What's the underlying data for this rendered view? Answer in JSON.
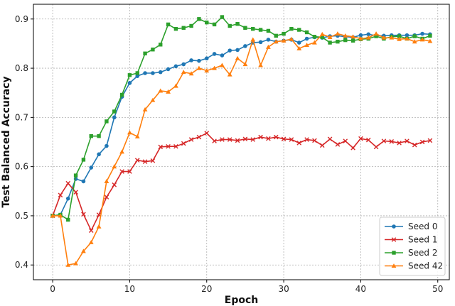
{
  "chart_data": {
    "type": "line",
    "title": "",
    "xlabel": "Epoch",
    "ylabel": "Test Balanced Accuracy",
    "xlim": [
      -2.5,
      51.5
    ],
    "ylim": [
      0.37,
      0.93
    ],
    "xticks": [
      0,
      10,
      20,
      30,
      40,
      50
    ],
    "yticks": [
      0.4,
      0.5,
      0.6,
      0.7,
      0.8,
      0.9
    ],
    "grid": true,
    "legend_position": "bottom-right",
    "x": [
      0,
      1,
      2,
      3,
      4,
      5,
      6,
      7,
      8,
      9,
      10,
      11,
      12,
      13,
      14,
      15,
      16,
      17,
      18,
      19,
      20,
      21,
      22,
      23,
      24,
      25,
      26,
      27,
      28,
      29,
      30,
      31,
      32,
      33,
      34,
      35,
      36,
      37,
      38,
      39,
      40,
      41,
      42,
      43,
      44,
      45,
      46,
      47,
      48,
      49
    ],
    "series": [
      {
        "name": "Seed 0",
        "color": "#1f77b4",
        "marker": "circle",
        "values": [
          0.5,
          0.502,
          0.535,
          0.575,
          0.57,
          0.598,
          0.625,
          0.642,
          0.7,
          0.742,
          0.77,
          0.784,
          0.79,
          0.79,
          0.792,
          0.798,
          0.804,
          0.808,
          0.816,
          0.815,
          0.82,
          0.829,
          0.826,
          0.836,
          0.837,
          0.845,
          0.852,
          0.853,
          0.858,
          0.854,
          0.856,
          0.858,
          0.852,
          0.86,
          0.863,
          0.862,
          0.865,
          0.866,
          0.864,
          0.863,
          0.867,
          0.869,
          0.866,
          0.866,
          0.867,
          0.867,
          0.867,
          0.867,
          0.87,
          0.869
        ]
      },
      {
        "name": "Seed 1",
        "color": "#d62728",
        "marker": "x",
        "values": [
          0.5,
          0.542,
          0.566,
          0.548,
          0.503,
          0.47,
          0.502,
          0.538,
          0.563,
          0.59,
          0.59,
          0.613,
          0.61,
          0.612,
          0.64,
          0.641,
          0.641,
          0.647,
          0.655,
          0.66,
          0.668,
          0.652,
          0.655,
          0.655,
          0.653,
          0.656,
          0.655,
          0.66,
          0.657,
          0.66,
          0.656,
          0.655,
          0.648,
          0.655,
          0.653,
          0.643,
          0.656,
          0.645,
          0.652,
          0.638,
          0.657,
          0.654,
          0.64,
          0.652,
          0.651,
          0.648,
          0.652,
          0.644,
          0.65,
          0.653
        ]
      },
      {
        "name": "Seed 2",
        "color": "#2ca02c",
        "marker": "square",
        "values": [
          0.5,
          0.502,
          0.492,
          0.582,
          0.614,
          0.662,
          0.662,
          0.692,
          0.712,
          0.746,
          0.786,
          0.79,
          0.83,
          0.838,
          0.848,
          0.889,
          0.88,
          0.882,
          0.886,
          0.9,
          0.893,
          0.889,
          0.904,
          0.886,
          0.89,
          0.882,
          0.88,
          0.878,
          0.876,
          0.866,
          0.87,
          0.88,
          0.878,
          0.873,
          0.864,
          0.863,
          0.852,
          0.854,
          0.857,
          0.856,
          0.859,
          0.86,
          0.865,
          0.86,
          0.864,
          0.865,
          0.86,
          0.865,
          0.86,
          0.866
        ]
      },
      {
        "name": "Seed 42",
        "color": "#ff7f0e",
        "marker": "triangle",
        "values": [
          0.5,
          0.5,
          0.4,
          0.403,
          0.428,
          0.446,
          0.478,
          0.57,
          0.6,
          0.63,
          0.669,
          0.661,
          0.716,
          0.735,
          0.754,
          0.752,
          0.764,
          0.792,
          0.789,
          0.8,
          0.795,
          0.8,
          0.806,
          0.787,
          0.82,
          0.808,
          0.858,
          0.806,
          0.843,
          0.854,
          0.856,
          0.859,
          0.84,
          0.847,
          0.852,
          0.869,
          0.863,
          0.87,
          0.866,
          0.864,
          0.86,
          0.862,
          0.87,
          0.862,
          0.862,
          0.859,
          0.86,
          0.854,
          0.858,
          0.855
        ]
      }
    ]
  }
}
